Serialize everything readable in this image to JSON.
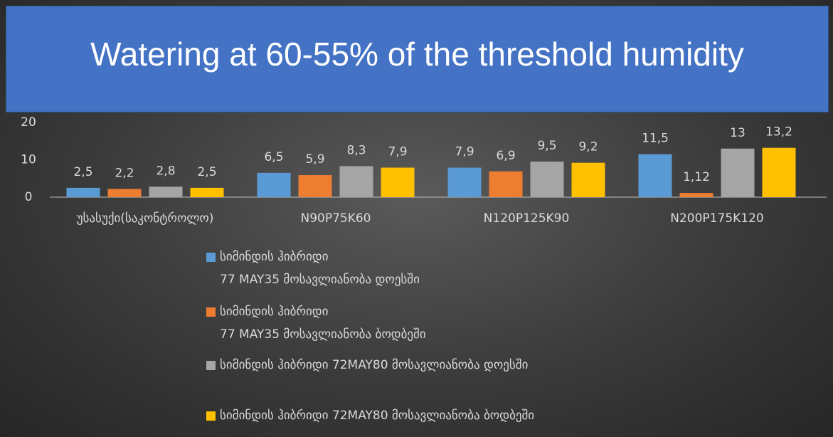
{
  "chart_data": {
    "type": "bar",
    "title": "Watering at 60-55% of the threshold humidity",
    "categories": [
      "უსასუქი(საკონტროლო)",
      "N90P75K60",
      "N120P125K90",
      "N200P175K120"
    ],
    "series": [
      {
        "name": "სიმინდის ჰიბრიდი\n77 MAY35 მოსავლიანობა დოესში",
        "color": "#5b9bd5",
        "values": [
          2.5,
          6.5,
          7.9,
          11.5
        ],
        "value_labels": [
          "2,5",
          "6,5",
          "7,9",
          "11,5"
        ]
      },
      {
        "name": "სიმინდის ჰიბრიდი\n77 MAY35 მოსავლიანობა ბოდბეში",
        "color": "#ed7d31",
        "values": [
          2.2,
          5.9,
          6.9,
          1.12
        ],
        "value_labels": [
          "2,2",
          "5,9",
          "6,9",
          "1,12"
        ]
      },
      {
        "name": "სიმინდის ჰიბრიდი 72MAY80 მოსავლიანობა დოესში",
        "color": "#a5a5a5",
        "values": [
          2.8,
          8.3,
          9.5,
          13
        ],
        "value_labels": [
          "2,8",
          "8,3",
          "9,5",
          "13"
        ]
      },
      {
        "name": "სიმინდის ჰიბრიდი 72MAY80 მოსავლიანობა ბოდბეში",
        "color": "#ffc000",
        "values": [
          2.5,
          7.9,
          9.2,
          13.2
        ],
        "value_labels": [
          "2,5",
          "7,9",
          "9,2",
          "13,2"
        ]
      }
    ],
    "ylim": [
      0,
      20
    ],
    "yticks": [
      0,
      10,
      20
    ],
    "grid": false
  }
}
